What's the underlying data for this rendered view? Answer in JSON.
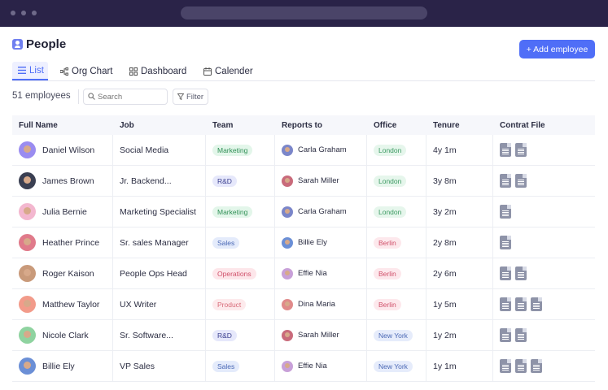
{
  "header": {
    "title": "People",
    "add_button_label": "+ Add employee"
  },
  "tabs": [
    {
      "label": "List",
      "icon": "list-icon",
      "active": true
    },
    {
      "label": "Org Chart",
      "icon": "org-chart-icon",
      "active": false
    },
    {
      "label": "Dashboard",
      "icon": "dashboard-icon",
      "active": false
    },
    {
      "label": "Calender",
      "icon": "calendar-icon",
      "active": false
    }
  ],
  "toolbar": {
    "employee_count": "51 employees",
    "search_placeholder": "Search",
    "filter_label": "Filter"
  },
  "table": {
    "columns": [
      "Full Name",
      "Job",
      "Team",
      "Reports to",
      "Office",
      "Tenure",
      "Contrat File"
    ],
    "rows": [
      {
        "name": "Daniel Wilson",
        "job": "Social Media",
        "team": "Marketing",
        "reports_to": "Carla Graham",
        "office": "London",
        "tenure": "4y 1m",
        "files": 2
      },
      {
        "name": "James Brown",
        "job": "Jr. Backend...",
        "team": "R&D",
        "reports_to": "Sarah Miller",
        "office": "London",
        "tenure": "3y 8m",
        "files": 2
      },
      {
        "name": "Julia Bernie",
        "job": "Marketing Specialist",
        "team": "Marketing",
        "reports_to": "Carla Graham",
        "office": "London",
        "tenure": "3y 2m",
        "files": 1
      },
      {
        "name": "Heather Prince",
        "job": "Sr. sales Manager",
        "team": "Sales",
        "reports_to": "Billie Ely",
        "office": "Berlin",
        "tenure": "2y 8m",
        "files": 1
      },
      {
        "name": "Roger Kaison",
        "job": "People Ops Head",
        "team": "Operations",
        "reports_to": "Effie Nia",
        "office": "Berlin",
        "tenure": "2y 6m",
        "files": 2
      },
      {
        "name": "Matthew Taylor",
        "job": "UX Writer",
        "team": "Product",
        "reports_to": "Dina Maria",
        "office": "Berlin",
        "tenure": "1y 5m",
        "files": 3
      },
      {
        "name": "Nicole Clark",
        "job": "Sr. Software...",
        "team": "R&D",
        "reports_to": "Sarah Miller",
        "office": "New York",
        "tenure": "1y 2m",
        "files": 2
      },
      {
        "name": "Billie Ely",
        "job": "VP Sales",
        "team": "Sales",
        "reports_to": "Effie Nia",
        "office": "New York",
        "tenure": "1y 1m",
        "files": 3
      }
    ]
  },
  "colors": {
    "accent": "#4f6ef7",
    "titlebar": "#2a2348",
    "team": {
      "Marketing": {
        "bg": "#e3f6ea",
        "fg": "#2f8f55"
      },
      "R&D": {
        "bg": "#e6e8fb",
        "fg": "#3b3f8f"
      },
      "Sales": {
        "bg": "#e4ebfb",
        "fg": "#4a68b5"
      },
      "Operations": {
        "bg": "#fde6ea",
        "fg": "#d0506a"
      },
      "Product": {
        "bg": "#fdeaec",
        "fg": "#d86a78"
      }
    },
    "office": {
      "London": {
        "bg": "#e6f6ec",
        "fg": "#3c9a62"
      },
      "Berlin": {
        "bg": "#fde8ec",
        "fg": "#d0506a"
      },
      "New York": {
        "bg": "#e6ecfb",
        "fg": "#4a68b5"
      }
    }
  }
}
